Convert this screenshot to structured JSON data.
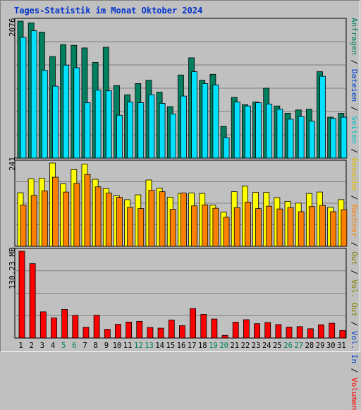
{
  "title": "Tages-Statistik im Monat Oktober 2024",
  "colors": {
    "anfragen": "#007f5f",
    "dateien": "#00e0ff",
    "seiten": "#00c0c0",
    "besuche": "#ffff00",
    "rechner": "#ff8000",
    "volumen": "#ff0000",
    "in": "#ffc000",
    "out": "#0000ff",
    "sep": "#000000",
    "weekend": "#00805f",
    "weekday": "#000000"
  },
  "right_legend_top": [
    {
      "text": "Anfragen",
      "color": "#007f5f"
    },
    {
      "text": " / ",
      "color": "#000000"
    },
    {
      "text": "Dateien",
      "color": "#0044cc"
    },
    {
      "text": " / ",
      "color": "#000000"
    },
    {
      "text": "Seiten",
      "color": "#00c0c0"
    },
    {
      "text": " / ",
      "color": "#000000"
    },
    {
      "text": "Besuche",
      "color": "#e0c000"
    },
    {
      "text": " / ",
      "color": "#000000"
    },
    {
      "text": "Rechner",
      "color": "#ff8000"
    },
    {
      "text": " / ",
      "color": "#000000"
    },
    {
      "text": "Out",
      "color": "#808000"
    },
    {
      "text": " / ",
      "color": "#000000"
    },
    {
      "text": "Vol. Out",
      "color": "#808000"
    },
    {
      "text": " / ",
      "color": "#000000"
    },
    {
      "text": "Vol. In",
      "color": "#0044cc"
    },
    {
      "text": " / ",
      "color": "#000000"
    },
    {
      "text": "Volumen",
      "color": "#ff0000"
    }
  ],
  "chart_data": {
    "type": "bar",
    "title": "Tages-Statistik im Monat Oktober 2024",
    "categories": [
      "1",
      "2",
      "3",
      "4",
      "5",
      "6",
      "7",
      "8",
      "9",
      "10",
      "11",
      "12",
      "13",
      "14",
      "15",
      "16",
      "17",
      "18",
      "19",
      "20",
      "21",
      "22",
      "23",
      "24",
      "25",
      "26",
      "27",
      "28",
      "29",
      "30",
      "31"
    ],
    "weekend_days": [
      "5",
      "6",
      "12",
      "13",
      "19",
      "20",
      "26",
      "27"
    ],
    "panels": [
      {
        "ymax_label": "2076",
        "ymax": 2076,
        "series": [
          {
            "name": "Anfragen",
            "values": [
              2076,
              2050,
              1910,
              1540,
              1720,
              1710,
              1670,
              1450,
              1680,
              1100,
              960,
              1130,
              1180,
              1000,
              780,
              1260,
              1520,
              1180,
              1270,
              480,
              920,
              810,
              850,
              1060,
              790,
              680,
              730,
              740,
              1310,
              620,
              680
            ]
          },
          {
            "name": "Dateien",
            "values": [
              1830,
              1930,
              1330,
              1090,
              1410,
              1370,
              840,
              1030,
              1020,
              650,
              850,
              840,
              960,
              830,
              670,
              940,
              1310,
              1130,
              1110,
              310,
              850,
              790,
              840,
              820,
              740,
              590,
              630,
              560,
              1240,
              600,
              620
            ]
          }
        ]
      },
      {
        "ymax_label": "241",
        "ymax": 241,
        "series": [
          {
            "name": "Besuche",
            "values": [
              155,
              195,
              197,
              241,
              181,
              222,
              238,
              194,
              167,
              146,
              135,
              149,
              192,
              168,
              142,
              153,
              154,
              153,
              119,
              99,
              158,
              174,
              156,
              156,
              141,
              130,
              125,
              153,
              157,
              113,
              135
            ]
          },
          {
            "name": "Rechner",
            "values": [
              119,
              147,
              160,
              200,
              157,
              182,
              208,
              172,
              154,
              142,
              113,
              109,
              162,
              158,
              107,
              154,
              117,
              120,
              110,
              84,
              112,
              128,
              109,
              116,
              108,
              112,
              100,
              115,
              118,
              100,
              106
            ]
          }
        ]
      },
      {
        "ymax_label": "130.23 MB",
        "ymax": 130.23,
        "series": [
          {
            "name": "Volumen",
            "values": [
              130.23,
              111.6,
              39.3,
              30.2,
              43,
              34,
              16.2,
              34.2,
              13.1,
              20.5,
              24,
              25,
              15.9,
              14.8,
              27,
              18.5,
              44.2,
              35.5,
              28.5,
              4,
              23.8,
              27.5,
              21.5,
              23.3,
              20.2,
              16.4,
              17.1,
              13.9,
              19.9,
              22.2,
              11.3
            ]
          }
        ]
      }
    ]
  }
}
